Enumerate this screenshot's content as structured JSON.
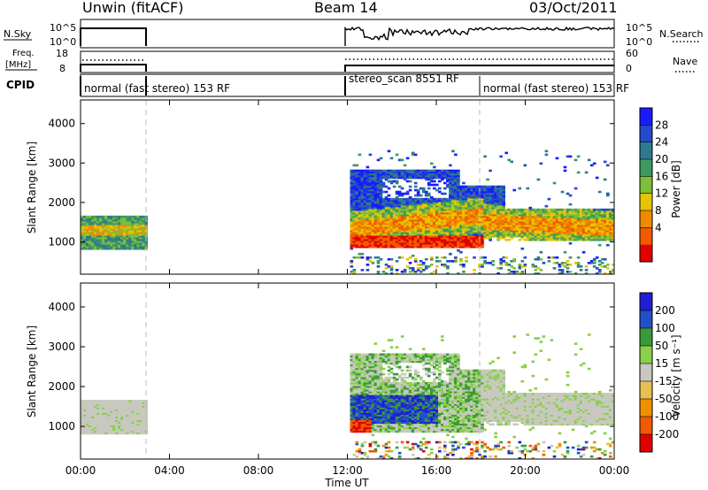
{
  "header": {
    "radar": "Unwin (fitACF)",
    "beam": "Beam 14",
    "date": "03/Oct/2011"
  },
  "status": {
    "nsky_label": "N.Sky",
    "nsky_ticks": [
      "10^5",
      "10^0"
    ],
    "nsearch_label": "N.Search",
    "nsearch_ticks": [
      "10^5",
      "10^0"
    ],
    "freq_label": "Freq.",
    "freq_unit": "[MHz]",
    "freq_ticks": [
      "18",
      "8"
    ],
    "nave_label": "Nave",
    "nave_ticks": [
      "60",
      "0"
    ],
    "cpid_label": "CPID",
    "cpid_segments": [
      {
        "label": "normal (fast stereo) 153 RF",
        "start_hour": 0
      },
      {
        "label": "stereo_scan 8551 RF",
        "start_hour": 12
      },
      {
        "label": "normal (fast stereo) 153 RF",
        "start_hour": 18
      }
    ]
  },
  "colors": {
    "power_scale": [
      "#1a1aff",
      "#234ac8",
      "#2f7a8f",
      "#3d9a5e",
      "#7cbf3a",
      "#e8c400",
      "#f08a00",
      "#f25a00",
      "#e00000"
    ],
    "velocity_scale": [
      "#2020d0",
      "#2250c8",
      "#3a9a3a",
      "#8ad04a",
      "#c8c8c0",
      "#e8c050",
      "#f09000",
      "#f05a00",
      "#e00000"
    ]
  },
  "chart_data": [
    {
      "type": "heatmap",
      "panel": "power",
      "ylabel": "Slant Range [km]",
      "xlabel": "Time UT",
      "x_ticks": [
        "00:00",
        "04:00",
        "08:00",
        "12:00",
        "16:00",
        "20:00",
        "00:00"
      ],
      "y_ticks": [
        "1000",
        "2000",
        "3000",
        "4000"
      ],
      "ylim": [
        180,
        4600
      ],
      "xlim_hours": [
        0,
        24
      ],
      "colorbar_label": "Power [dB]",
      "colorbar_ticks": [
        "28",
        "24",
        "20",
        "16",
        "12",
        "8",
        "4"
      ],
      "data_windows_hours": [
        [
          0,
          3
        ],
        [
          12,
          24
        ]
      ]
    },
    {
      "type": "heatmap",
      "panel": "velocity",
      "ylabel": "Slant Range [km]",
      "xlabel": "Time UT",
      "x_ticks": [
        "00:00",
        "04:00",
        "08:00",
        "12:00",
        "16:00",
        "20:00",
        "00:00"
      ],
      "y_ticks": [
        "1000",
        "2000",
        "3000",
        "4000"
      ],
      "ylim": [
        180,
        4600
      ],
      "xlim_hours": [
        0,
        24
      ],
      "colorbar_label": "Velocity [m s⁻¹]",
      "colorbar_ticks": [
        "200",
        "100",
        "50",
        "15",
        "-15",
        "-50",
        "-100",
        "-200"
      ],
      "data_windows_hours": [
        [
          0,
          3
        ],
        [
          12,
          24
        ]
      ]
    }
  ]
}
